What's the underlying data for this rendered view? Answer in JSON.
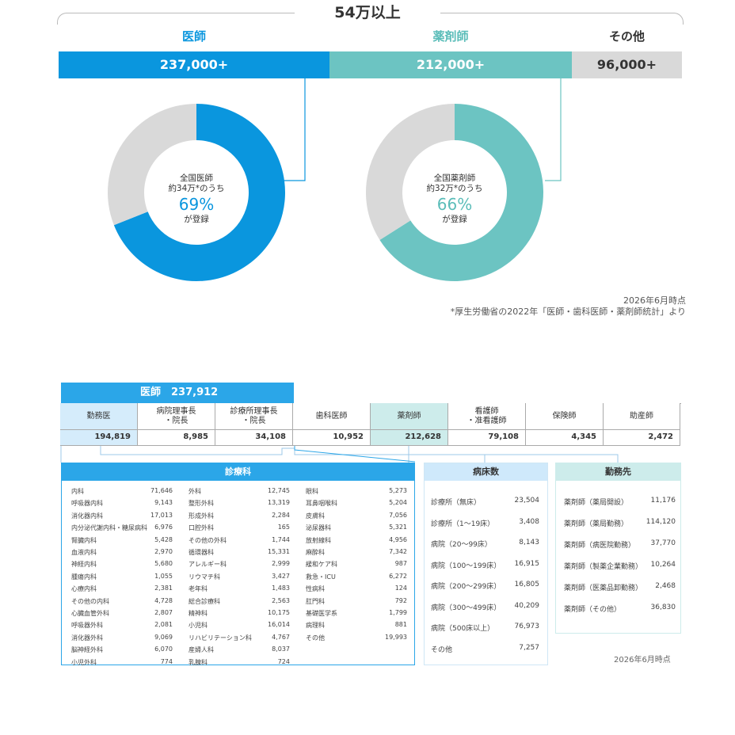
{
  "header": {
    "title": "54万以上"
  },
  "categories": [
    {
      "name": "医師",
      "value_label": "237,000+",
      "share": 237000,
      "color": "#0a96de",
      "label_color": "#0a96de",
      "text_color": "#ffffff"
    },
    {
      "name": "薬剤師",
      "value_label": "212,000+",
      "share": 212000,
      "color": "#6cc4c2",
      "label_color": "#5bbdb9",
      "text_color": "#ffffff"
    },
    {
      "name": "その他",
      "value_label": "96,000+",
      "share": 96000,
      "color": "#d9d9d9",
      "label_color": "#333333",
      "text_color": "#333333"
    }
  ],
  "chart_data": [
    {
      "type": "pie",
      "title": "",
      "slices": [
        {
          "label": "登録",
          "value": 69
        },
        {
          "label": "",
          "value": 31
        }
      ],
      "center": {
        "line1": "全国医師",
        "line2": "約34万*のうち",
        "pct": "69%",
        "line4": "が登録"
      },
      "colors": [
        "#0a96de",
        "#d9d9d9"
      ]
    },
    {
      "type": "pie",
      "title": "",
      "slices": [
        {
          "label": "登録",
          "value": 66
        },
        {
          "label": "",
          "value": 34
        }
      ],
      "center": {
        "line1": "全国薬剤師",
        "line2": "約32万*のうち",
        "pct": "66%",
        "line4": "が登録"
      },
      "colors": [
        "#6cc4c2",
        "#d9d9d9"
      ]
    }
  ],
  "notes": {
    "as_of": "2026年6月時点",
    "source": "*厚生労働省の2022年「医師・歯科医師・薬剤師統計」より"
  },
  "table": {
    "doctor_header": "医師　237,912",
    "columns": [
      {
        "label": "勤務医",
        "value": "194,819",
        "hl": "blue"
      },
      {
        "label": "病院理事長\n・院長",
        "value": "8,985",
        "hl": ""
      },
      {
        "label": "診療所理事長\n・院長",
        "value": "34,108",
        "hl": ""
      },
      {
        "label": "歯科医師",
        "value": "10,952",
        "hl": ""
      },
      {
        "label": "薬剤師",
        "value": "212,628",
        "hl": "teal"
      },
      {
        "label": "看護師\n・准看護師",
        "value": "79,108",
        "hl": ""
      },
      {
        "label": "保険師",
        "value": "4,345",
        "hl": ""
      },
      {
        "label": "助産師",
        "value": "2,472",
        "hl": ""
      }
    ]
  },
  "departments": {
    "title": "診療科",
    "col1": [
      [
        "内科",
        "71,646"
      ],
      [
        "呼吸器内科",
        "9,143"
      ],
      [
        "消化器内科",
        "17,013"
      ],
      [
        "内分泌代謝内科・糖尿病科",
        "6,976"
      ],
      [
        "腎臓内科",
        "5,428"
      ],
      [
        "血液内科",
        "2,970"
      ],
      [
        "神経内科",
        "5,680"
      ],
      [
        "腫瘍内科",
        "1,055"
      ],
      [
        "心療内科",
        "2,381"
      ],
      [
        "その他の内科",
        "4,728"
      ],
      [
        "心臓血管外科",
        "2,807"
      ],
      [
        "呼吸器外科",
        "2,081"
      ],
      [
        "消化器外科",
        "9,069"
      ],
      [
        "脳神経外科",
        "6,070"
      ],
      [
        "小児外科",
        "774"
      ]
    ],
    "col2": [
      [
        "外科",
        "12,745"
      ],
      [
        "整形外科",
        "13,319"
      ],
      [
        "形成外科",
        "2,284"
      ],
      [
        "口腔外科",
        "165"
      ],
      [
        "その他の外科",
        "1,744"
      ],
      [
        "循環器科",
        "15,331"
      ],
      [
        "アレルギー科",
        "2,999"
      ],
      [
        "リウマチ科",
        "3,427"
      ],
      [
        "老年科",
        "1,483"
      ],
      [
        "総合診療科",
        "2,563"
      ],
      [
        "精神科",
        "10,175"
      ],
      [
        "小児科",
        "16,014"
      ],
      [
        "リハビリテーション科",
        "4,767"
      ],
      [
        "産婦人科",
        "8,037"
      ],
      [
        "乳腺科",
        "724"
      ]
    ],
    "col3": [
      [
        "眼科",
        "5,273"
      ],
      [
        "耳鼻咽喉科",
        "5,204"
      ],
      [
        "皮膚科",
        "7,056"
      ],
      [
        "泌尿器科",
        "5,321"
      ],
      [
        "放射線科",
        "4,956"
      ],
      [
        "麻酔科",
        "7,342"
      ],
      [
        "緩和ケア科",
        "987"
      ],
      [
        "救急・ICU",
        "6,272"
      ],
      [
        "性病科",
        "124"
      ],
      [
        "肛門科",
        "792"
      ],
      [
        "基礎医学系",
        "1,799"
      ],
      [
        "病理科",
        "881"
      ],
      [
        "その他",
        "19,993"
      ]
    ]
  },
  "beds": {
    "title": "病床数",
    "rows": [
      [
        "診療所（無床）",
        "23,504"
      ],
      [
        "診療所（1～19床）",
        "3,408"
      ],
      [
        "病院（20～99床）",
        "8,143"
      ],
      [
        "病院（100～199床）",
        "16,915"
      ],
      [
        "病院（200～299床）",
        "16,805"
      ],
      [
        "病院（300～499床）",
        "40,209"
      ],
      [
        "病院（500床以上）",
        "76,973"
      ],
      [
        "その他",
        "7,257"
      ]
    ]
  },
  "workplace": {
    "title": "勤務先",
    "rows": [
      [
        "薬剤師（薬局開設）",
        "11,176"
      ],
      [
        "薬剤師（薬局勤務）",
        "114,120"
      ],
      [
        "薬剤師（病医院勤務）",
        "37,770"
      ],
      [
        "薬剤師（製薬企業勤務）",
        "10,264"
      ],
      [
        "薬剤師（医薬品卸勤務）",
        "2,468"
      ],
      [
        "薬剤師（その他）",
        "36,830"
      ]
    ],
    "as_of": "2026年6月時点"
  }
}
